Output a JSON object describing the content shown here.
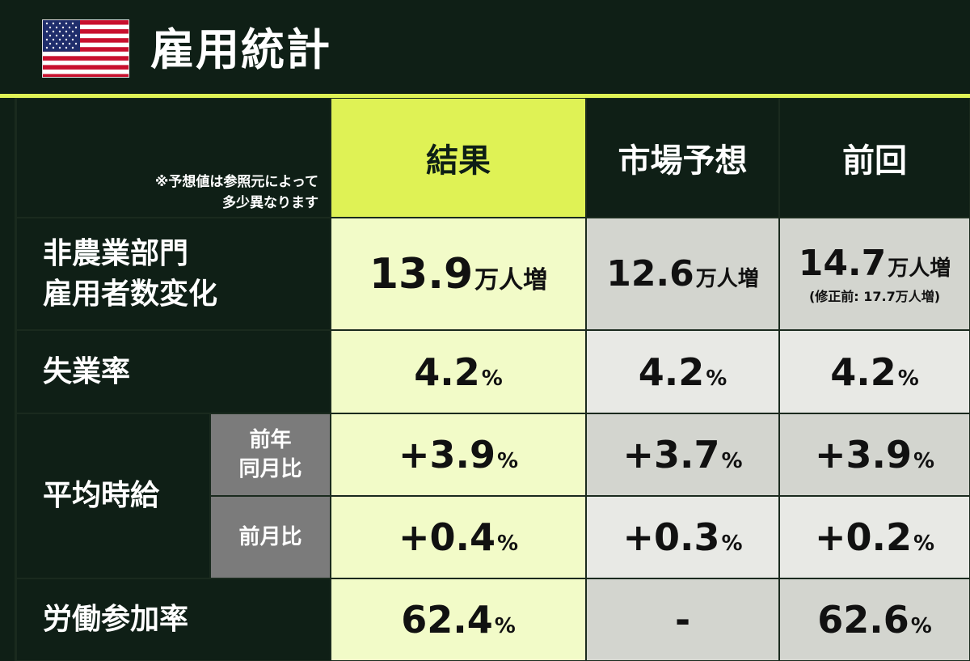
{
  "header": {
    "flag_icon": "us-flag-icon",
    "title": "雇用統計"
  },
  "table": {
    "note_line1": "※予想値は参照元によって",
    "note_line2": "多少異なります",
    "columns": {
      "result": "結果",
      "forecast": "市場予想",
      "previous": "前回"
    },
    "rows": {
      "nfp": {
        "label_line1": "非農業部門",
        "label_line2": "雇用者数変化",
        "result_value": "13.9",
        "result_unit": "万人増",
        "forecast_value": "12.6",
        "forecast_unit": "万人増",
        "previous_value": "14.7",
        "previous_unit": "万人増",
        "previous_note": "(修正前: 17.7万人増)"
      },
      "unemployment": {
        "label": "失業率",
        "result_value": "4.2",
        "result_unit": "%",
        "forecast_value": "4.2",
        "forecast_unit": "%",
        "previous_value": "4.2",
        "previous_unit": "%"
      },
      "wages": {
        "label": "平均時給",
        "yoy": {
          "label_line1": "前年",
          "label_line2": "同月比",
          "result_value": "+3.9",
          "result_unit": "%",
          "forecast_value": "+3.7",
          "forecast_unit": "%",
          "previous_value": "+3.9",
          "previous_unit": "%"
        },
        "mom": {
          "label": "前月比",
          "result_value": "+0.4",
          "result_unit": "%",
          "forecast_value": "+0.3",
          "forecast_unit": "%",
          "previous_value": "+0.2",
          "previous_unit": "%"
        }
      },
      "participation": {
        "label": "労働参加率",
        "result_value": "62.4",
        "result_unit": "%",
        "forecast_value": "-",
        "previous_value": "62.6",
        "previous_unit": "%"
      }
    }
  },
  "colors": {
    "background": "#0f1f16",
    "accent_lime": "#dff255",
    "result_cell": "#f2fbc8",
    "grey_cell": "#d3d5cf",
    "grey_light_cell": "#e8e9e5",
    "sub_label_cell": "#7b7b7b"
  }
}
